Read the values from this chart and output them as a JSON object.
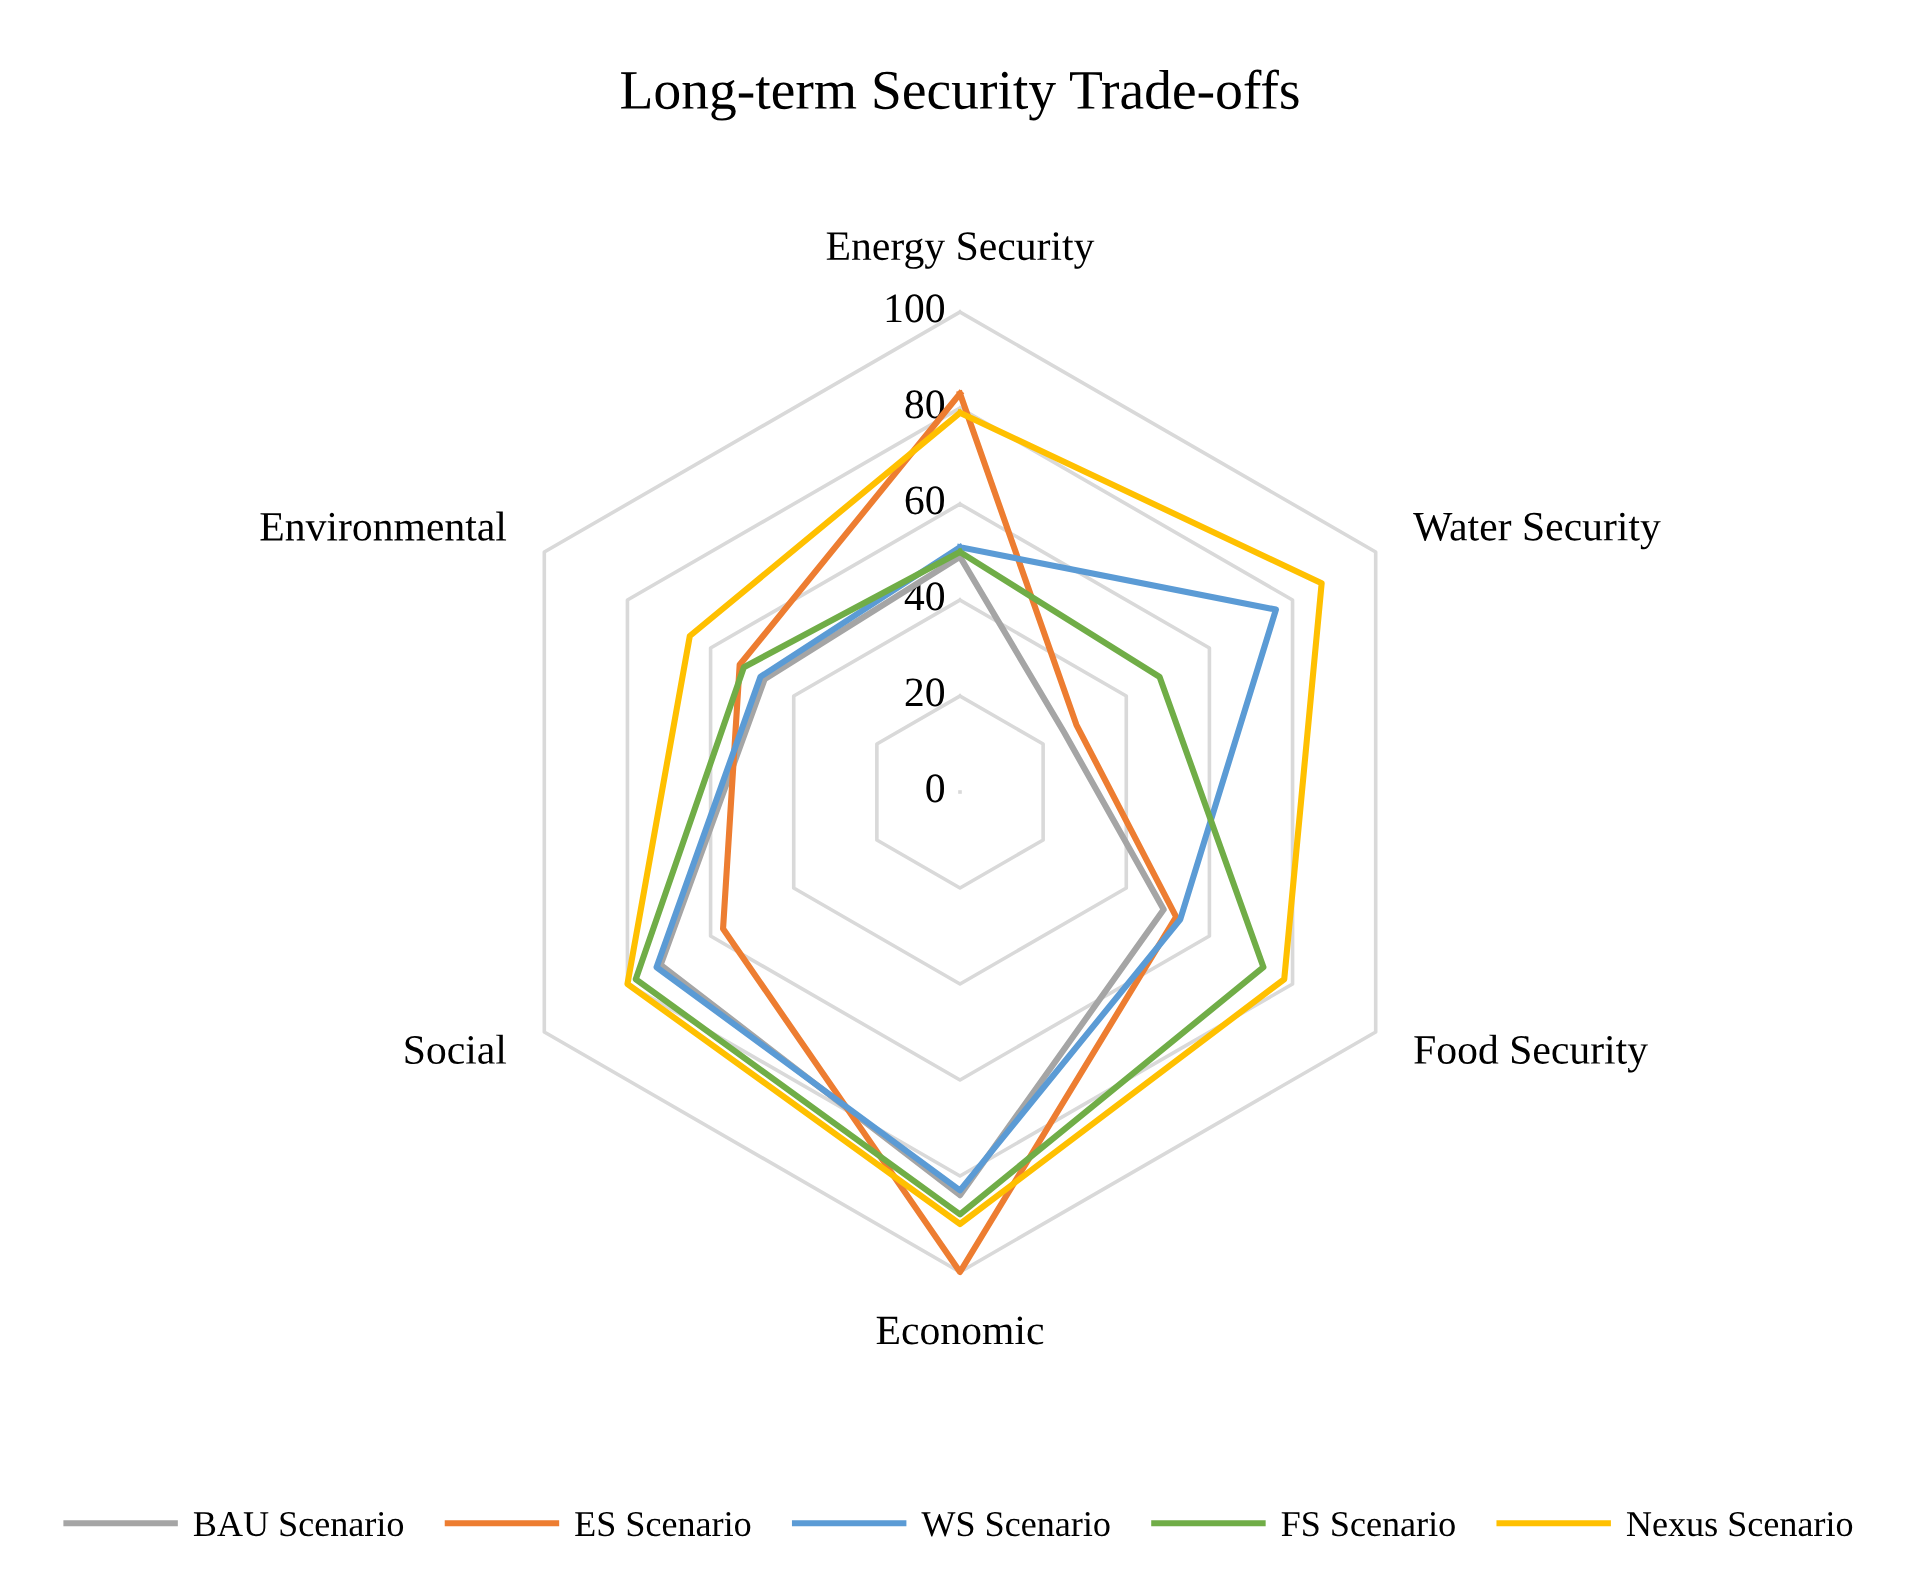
{
  "chart_data": {
    "type": "radar",
    "title": "Long-term Security Trade-offs",
    "categories": [
      "Energy Security",
      "Water Security",
      "Food Security",
      "Economic",
      "Social",
      "Environmental"
    ],
    "ylim": [
      0,
      100
    ],
    "yticks": [
      0,
      20,
      40,
      60,
      80,
      100
    ],
    "grid": true,
    "legend": "bottom",
    "series": [
      {
        "name": "BAU Scenario",
        "color": "#a5a5a5",
        "values": [
          49,
          25,
          49,
          84,
          72,
          47
        ]
      },
      {
        "name": "ES Scenario",
        "color": "#ed7d31",
        "values": [
          83,
          28,
          52,
          100,
          57,
          53
        ]
      },
      {
        "name": "WS Scenario",
        "color": "#5b9bd5",
        "values": [
          51,
          76,
          53,
          83,
          73,
          48
        ]
      },
      {
        "name": "FS Scenario",
        "color": "#70ad47",
        "values": [
          50,
          48,
          73,
          88,
          78,
          52
        ]
      },
      {
        "name": "Nexus Scenario",
        "color": "#ffc000",
        "values": [
          79,
          87,
          78,
          90,
          80,
          65
        ]
      }
    ]
  }
}
